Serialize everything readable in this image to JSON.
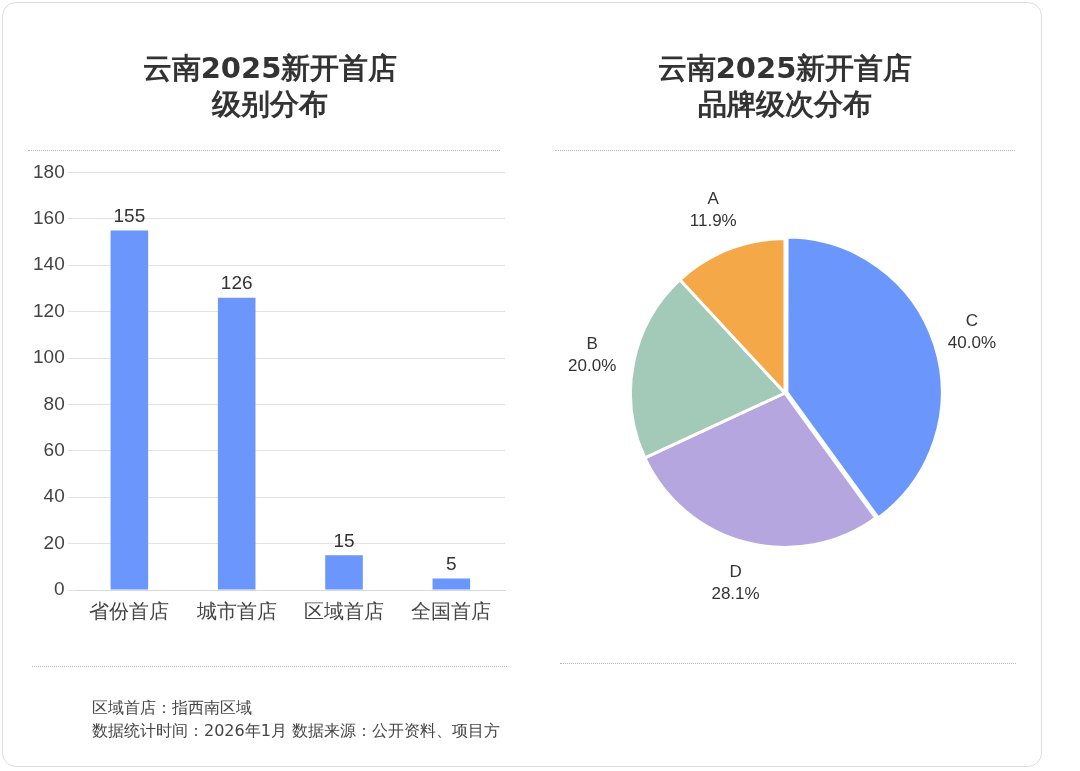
{
  "chart_data": [
    {
      "type": "bar",
      "title": "云南2025新开首店级别分布",
      "categories": [
        "省份首店",
        "城市首店",
        "区域首店",
        "全国首店"
      ],
      "values": [
        155,
        126,
        15,
        5
      ],
      "color": "#6b96fb",
      "ylim": [
        0,
        180
      ],
      "yticks": [
        0,
        20,
        40,
        60,
        80,
        100,
        120,
        140,
        160,
        180
      ],
      "grid": "y",
      "data_labels": true,
      "legend": false,
      "annotations": [
        "区域首店：指西南区域",
        "数据统计时间：2026年1月 数据来源：公开资料、项目方"
      ]
    },
    {
      "type": "pie",
      "title": "云南2025新开首店品牌级次分布",
      "categories": [
        "C",
        "D",
        "B",
        "A"
      ],
      "values": [
        40.0,
        28.1,
        20.0,
        11.9
      ],
      "colors": [
        "#6b96fb",
        "#b5a6e0",
        "#a3c9b8",
        "#f5a847"
      ],
      "value_labels": [
        "40.0%",
        "28.1%",
        "20.0%",
        "11.9%"
      ],
      "legend": false
    }
  ]
}
